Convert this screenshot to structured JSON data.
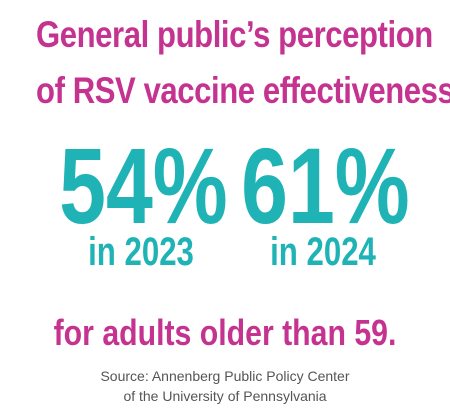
{
  "headline": {
    "line1": "General public’s perception",
    "line2": "of RSV vaccine effectiveness:"
  },
  "stats": [
    {
      "value": "54%",
      "label": "in 2023"
    },
    {
      "value": "61%",
      "label": "in 2024"
    }
  ],
  "qualifier": "for adults older than 59.",
  "source": {
    "line1": "Source: Annenberg Public Policy Center",
    "line2": "of the University of Pennsylvania"
  },
  "colors": {
    "magenta": "#c4338f",
    "teal": "#1fb3b6",
    "gray": "#555555"
  }
}
